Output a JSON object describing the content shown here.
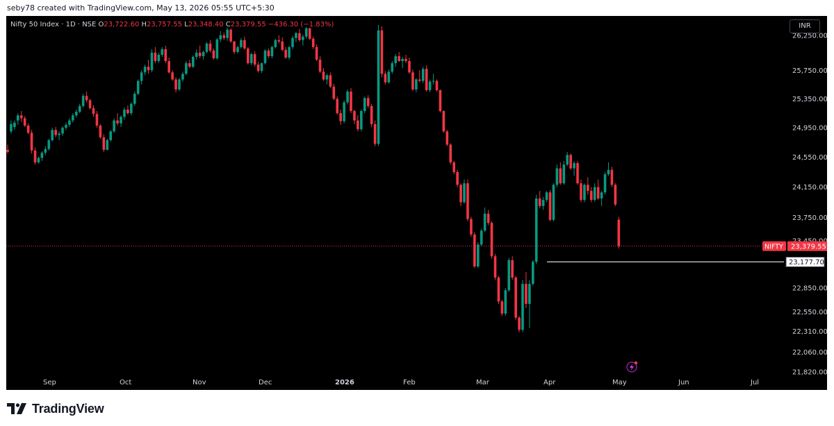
{
  "header": {
    "credit": "seby78 created with TradingView.com, May 13, 2026 05:55 UTC+5:30"
  },
  "legend": {
    "symbol": "Nifty 50 Index · 1D · NSE",
    "o_label": "O",
    "o": "23,722.60",
    "h_label": "H",
    "h": "23,757.55",
    "l_label": "L",
    "l": "23,348.40",
    "c_label": "C",
    "c": "23,379.55",
    "change": "−436.30 (−1.83%)"
  },
  "currency_button": "INR",
  "price_tag": {
    "symbol": "NIFTY",
    "value": "23,379.55"
  },
  "level_label": "23,177.70",
  "brand": {
    "name": "TradingView"
  },
  "colors": {
    "up": "#089981",
    "down": "#f23645",
    "background": "#000000",
    "axis_text": "#d1d4dc"
  },
  "chart_data": {
    "type": "candlestick",
    "scale": "log",
    "ylim": [
      21820,
      26600
    ],
    "yticks": [
      "26,250.00",
      "25,750.00",
      "25,350.00",
      "24,950.00",
      "24,550.00",
      "24,150.00",
      "23,750.00",
      "23,450.00",
      "22,850.00",
      "22,550.00",
      "22,310.00",
      "22,060.00",
      "21,820.00"
    ],
    "xticks": [
      "Sep",
      "Oct",
      "Nov",
      "Dec",
      "2026",
      "Feb",
      "Mar",
      "Apr",
      "May",
      "Jun",
      "Jul"
    ],
    "last_close": 23379.55,
    "horizontal_level": 23177.7,
    "candles": [
      [
        24650,
        24720,
        24600,
        24620
      ],
      [
        24900,
        25050,
        24870,
        25000
      ],
      [
        24960,
        25050,
        24920,
        25020
      ],
      [
        25050,
        25150,
        24990,
        25120
      ],
      [
        25120,
        25180,
        25030,
        25080
      ],
      [
        25080,
        25110,
        24960,
        24980
      ],
      [
        24980,
        25010,
        24860,
        24880
      ],
      [
        24880,
        24920,
        24600,
        24640
      ],
      [
        24640,
        24680,
        24450,
        24480
      ],
      [
        24480,
        24560,
        24460,
        24540
      ],
      [
        24540,
        24630,
        24500,
        24610
      ],
      [
        24610,
        24700,
        24580,
        24660
      ],
      [
        24660,
        24800,
        24640,
        24780
      ],
      [
        24780,
        24950,
        24760,
        24920
      ],
      [
        24920,
        24960,
        24820,
        24850
      ],
      [
        24850,
        24900,
        24780,
        24870
      ],
      [
        24870,
        24970,
        24840,
        24950
      ],
      [
        24950,
        25020,
        24920,
        24990
      ],
      [
        24990,
        25080,
        24960,
        25050
      ],
      [
        25050,
        25150,
        25020,
        25120
      ],
      [
        25120,
        25200,
        25090,
        25170
      ],
      [
        25170,
        25280,
        25150,
        25250
      ],
      [
        25250,
        25420,
        25230,
        25390
      ],
      [
        25390,
        25450,
        25300,
        25330
      ],
      [
        25330,
        25350,
        25200,
        25220
      ],
      [
        25220,
        25260,
        25100,
        25140
      ],
      [
        25140,
        25180,
        24950,
        24980
      ],
      [
        24980,
        25000,
        24800,
        24820
      ],
      [
        24820,
        24860,
        24620,
        24650
      ],
      [
        24650,
        24800,
        24640,
        24780
      ],
      [
        24780,
        24920,
        24760,
        24900
      ],
      [
        24900,
        25080,
        24880,
        25050
      ],
      [
        25050,
        25150,
        24980,
        25010
      ],
      [
        25010,
        25120,
        24960,
        25100
      ],
      [
        25100,
        25230,
        25060,
        25200
      ],
      [
        25200,
        25260,
        25130,
        25150
      ],
      [
        25150,
        25300,
        25120,
        25280
      ],
      [
        25280,
        25450,
        25250,
        25420
      ],
      [
        25420,
        25620,
        25400,
        25600
      ],
      [
        25600,
        25750,
        25550,
        25720
      ],
      [
        25720,
        25830,
        25680,
        25800
      ],
      [
        25800,
        25900,
        25700,
        25750
      ],
      [
        25750,
        26050,
        25720,
        26000
      ],
      [
        26000,
        26080,
        25850,
        25880
      ],
      [
        25880,
        26000,
        25850,
        25970
      ],
      [
        25970,
        26080,
        25940,
        26050
      ],
      [
        26050,
        26100,
        25850,
        25880
      ],
      [
        25880,
        25930,
        25700,
        25720
      ],
      [
        25720,
        25750,
        25600,
        25620
      ],
      [
        25620,
        25650,
        25440,
        25480
      ],
      [
        25480,
        25640,
        25460,
        25620
      ],
      [
        25620,
        25730,
        25590,
        25700
      ],
      [
        25700,
        25880,
        25680,
        25850
      ],
      [
        25850,
        25900,
        25780,
        25800
      ],
      [
        25800,
        25960,
        25780,
        25940
      ],
      [
        25940,
        26050,
        25900,
        26000
      ],
      [
        26000,
        26100,
        25920,
        25950
      ],
      [
        25950,
        26030,
        25900,
        26010
      ],
      [
        26010,
        26150,
        25990,
        26130
      ],
      [
        26130,
        26180,
        26000,
        26030
      ],
      [
        26030,
        26060,
        25900,
        25920
      ],
      [
        25920,
        26210,
        25900,
        26190
      ],
      [
        26190,
        26310,
        26150,
        26250
      ],
      [
        26250,
        26290,
        26180,
        26210
      ],
      [
        26210,
        26360,
        26170,
        26330
      ],
      [
        26330,
        26350,
        26140,
        26160
      ],
      [
        26160,
        26170,
        25980,
        26010
      ],
      [
        26010,
        26100,
        25990,
        26080
      ],
      [
        26080,
        26210,
        26060,
        26180
      ],
      [
        26180,
        26230,
        26040,
        26060
      ],
      [
        26060,
        26080,
        25830,
        25850
      ],
      [
        25850,
        26000,
        25820,
        25980
      ],
      [
        25980,
        26020,
        25800,
        25830
      ],
      [
        25830,
        25870,
        25720,
        25740
      ],
      [
        25740,
        25860,
        25710,
        25850
      ],
      [
        25850,
        26050,
        25830,
        26030
      ],
      [
        26030,
        26060,
        25920,
        25950
      ],
      [
        25950,
        26100,
        25920,
        26080
      ],
      [
        26080,
        26200,
        26060,
        26180
      ],
      [
        26180,
        26250,
        26130,
        26160
      ],
      [
        26160,
        26220,
        26020,
        26040
      ],
      [
        26040,
        26080,
        25910,
        25930
      ],
      [
        25930,
        26100,
        25900,
        26080
      ],
      [
        26080,
        26240,
        26050,
        26210
      ],
      [
        26210,
        26300,
        26150,
        26280
      ],
      [
        26280,
        26340,
        26160,
        26180
      ],
      [
        26180,
        26260,
        26100,
        26230
      ],
      [
        26230,
        26370,
        26200,
        26350
      ],
      [
        26350,
        26360,
        26180,
        26200
      ],
      [
        26200,
        26230,
        26050,
        26080
      ],
      [
        26080,
        26120,
        25880,
        25900
      ],
      [
        25900,
        25950,
        25710,
        25730
      ],
      [
        25730,
        25780,
        25600,
        25620
      ],
      [
        25620,
        25700,
        25550,
        25680
      ],
      [
        25680,
        25720,
        25500,
        25520
      ],
      [
        25520,
        25560,
        25330,
        25350
      ],
      [
        25350,
        25380,
        25130,
        25150
      ],
      [
        25150,
        25200,
        24990,
        25040
      ],
      [
        25040,
        25330,
        25010,
        25300
      ],
      [
        25300,
        25480,
        25270,
        25450
      ],
      [
        25450,
        25500,
        25150,
        25180
      ],
      [
        25180,
        25200,
        25000,
        25050
      ],
      [
        25050,
        25120,
        24900,
        24930
      ],
      [
        24930,
        25200,
        24900,
        25180
      ],
      [
        25180,
        25380,
        25150,
        25360
      ],
      [
        25360,
        25400,
        25220,
        25250
      ],
      [
        25250,
        25280,
        24960,
        25000
      ],
      [
        25000,
        25050,
        24700,
        24730
      ],
      [
        24730,
        26400,
        24700,
        26320
      ],
      [
        26320,
        26380,
        25650,
        25700
      ],
      [
        25700,
        25740,
        25550,
        25580
      ],
      [
        25580,
        25760,
        25560,
        25730
      ],
      [
        25730,
        25880,
        25700,
        25850
      ],
      [
        25850,
        25980,
        25800,
        25950
      ],
      [
        25950,
        26010,
        25870,
        25880
      ],
      [
        25880,
        25940,
        25780,
        25910
      ],
      [
        25910,
        25970,
        25850,
        25880
      ],
      [
        25880,
        25930,
        25700,
        25720
      ],
      [
        25720,
        25760,
        25460,
        25480
      ],
      [
        25480,
        25640,
        25440,
        25620
      ],
      [
        25620,
        25750,
        25580,
        25600
      ],
      [
        25600,
        25800,
        25570,
        25770
      ],
      [
        25770,
        25820,
        25450,
        25470
      ],
      [
        25470,
        25620,
        25440,
        25590
      ],
      [
        25590,
        25700,
        25550,
        25600
      ],
      [
        25600,
        25620,
        25450,
        25470
      ],
      [
        25470,
        25480,
        25160,
        25180
      ],
      [
        25180,
        25190,
        24880,
        24900
      ],
      [
        24900,
        24920,
        24700,
        24720
      ],
      [
        24720,
        24740,
        24450,
        24480
      ],
      [
        24480,
        24500,
        24320,
        24350
      ],
      [
        24350,
        24380,
        24150,
        24180
      ],
      [
        24180,
        24200,
        23900,
        23950
      ],
      [
        23950,
        24250,
        23930,
        24200
      ],
      [
        24200,
        24250,
        23700,
        23730
      ],
      [
        23730,
        23760,
        23500,
        23530
      ],
      [
        23530,
        23560,
        23100,
        23120
      ],
      [
        23120,
        23430,
        23100,
        23400
      ],
      [
        23400,
        23600,
        23380,
        23580
      ],
      [
        23580,
        23880,
        23560,
        23800
      ],
      [
        23800,
        23850,
        23650,
        23680
      ],
      [
        23680,
        23700,
        23220,
        23250
      ],
      [
        23250,
        23280,
        22950,
        22980
      ],
      [
        22980,
        23000,
        22650,
        22680
      ],
      [
        22680,
        22700,
        22500,
        22530
      ],
      [
        22530,
        22850,
        22500,
        22820
      ],
      [
        22820,
        23230,
        22800,
        23200
      ],
      [
        23200,
        23250,
        22950,
        22980
      ],
      [
        22980,
        23000,
        22450,
        22480
      ],
      [
        22480,
        22500,
        22300,
        22330
      ],
      [
        22330,
        22950,
        22300,
        22900
      ],
      [
        22900,
        23050,
        22600,
        22650
      ],
      [
        22650,
        22950,
        22350,
        22900
      ],
      [
        22900,
        23200,
        22880,
        23180
      ],
      [
        23180,
        24050,
        23150,
        24000
      ],
      [
        24000,
        24100,
        23870,
        23900
      ],
      [
        23900,
        24020,
        23850,
        23980
      ],
      [
        23980,
        24100,
        23950,
        24080
      ],
      [
        24080,
        24110,
        23700,
        23720
      ],
      [
        23720,
        24200,
        23700,
        24180
      ],
      [
        24180,
        24450,
        24150,
        24400
      ],
      [
        24400,
        24480,
        24180,
        24200
      ],
      [
        24200,
        24500,
        24180,
        24450
      ],
      [
        24450,
        24620,
        24430,
        24580
      ],
      [
        24580,
        24600,
        24380,
        24400
      ],
      [
        24400,
        24500,
        24300,
        24470
      ],
      [
        24470,
        24500,
        24180,
        24200
      ],
      [
        24200,
        24250,
        23950,
        23980
      ],
      [
        23980,
        24200,
        23950,
        24180
      ],
      [
        24180,
        24280,
        24050,
        24100
      ],
      [
        24100,
        24150,
        23950,
        23980
      ],
      [
        23980,
        24200,
        23960,
        24150
      ],
      [
        24150,
        24250,
        23980,
        24000
      ],
      [
        24000,
        24100,
        23900,
        24080
      ],
      [
        24080,
        24350,
        24050,
        24320
      ],
      [
        24320,
        24480,
        24300,
        24380
      ],
      [
        24380,
        24420,
        24150,
        24180
      ],
      [
        24180,
        24200,
        23900,
        23920
      ],
      [
        23722.6,
        23757.55,
        23348.4,
        23379.55
      ]
    ]
  }
}
